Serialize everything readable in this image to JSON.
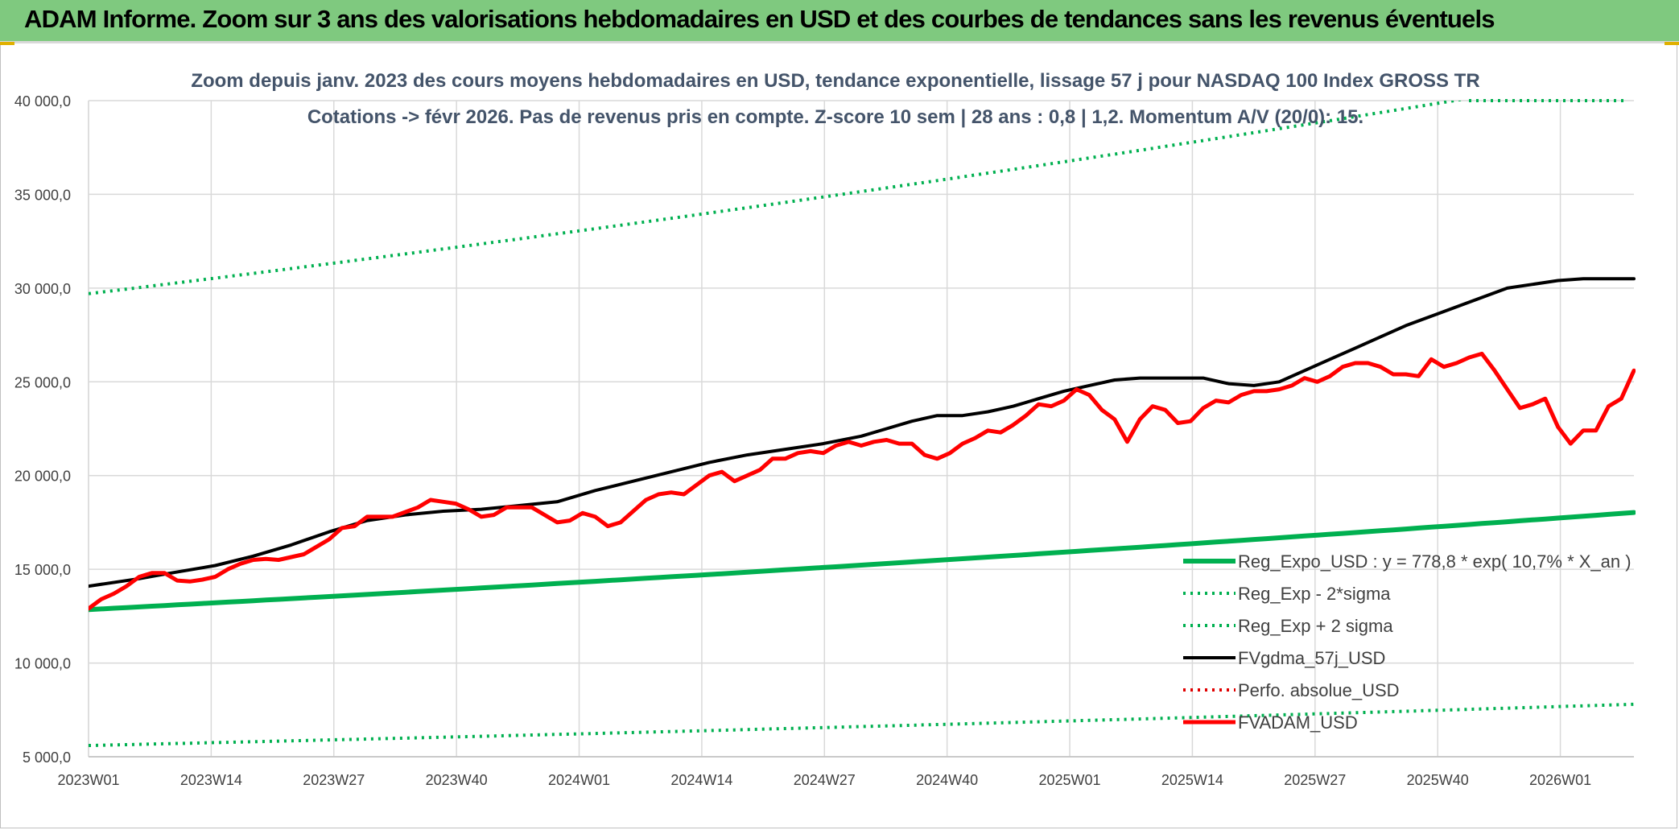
{
  "banner": {
    "title": "ADAM Informe. Zoom sur 3 ans des valorisations hebdomadaires en USD et des courbes de tendances sans les revenus éventuels",
    "color": "#7fc97f"
  },
  "chart_data": {
    "type": "line",
    "title_line1": "Zoom depuis janv. 2023 des cours moyens hebdomadaires en USD, tendance exponentielle, lissage 57 j pour NASDAQ 100 Index GROSS TR",
    "title_line2": "Cotations -> févr 2026. Pas de revenus pris en compte. Z-score 10 sem | 28 ans : 0,8 | 1,2. Momentum A/V (20/0): 15.",
    "xlabel": "",
    "ylabel": "",
    "ylim": [
      5000,
      40000
    ],
    "y_ticks": [
      "5 000,0",
      "10 000,0",
      "15 000,0",
      "20 000,0",
      "25 000,0",
      "30 000,0",
      "35 000,0",
      "40 000,0"
    ],
    "x_ticks": [
      "2023W01",
      "2023W14",
      "2023W27",
      "2023W40",
      "2024W01",
      "2024W14",
      "2024W27",
      "2024W40",
      "2025W01",
      "2025W14",
      "2025W27",
      "2025W40",
      "2026W01"
    ],
    "grid": true,
    "legend_position": "bottom-right",
    "x_weeks": 165,
    "series": [
      {
        "name": "Reg_Expo_USD : y = 778,8 * exp( 10,7% *  X_an )",
        "color": "#00b050",
        "style": "solid-thick",
        "values_anchor": [
          [
            0,
            12850
          ],
          [
            164,
            18030
          ]
        ]
      },
      {
        "name": "Reg_Exp - 2*sigma",
        "color": "#00b050",
        "style": "dotted",
        "values_anchor": [
          [
            0,
            5600
          ],
          [
            164,
            7800
          ]
        ]
      },
      {
        "name": "Reg_Exp + 2 sigma",
        "color": "#00b050",
        "style": "dotted",
        "values_anchor": [
          [
            0,
            29700
          ],
          [
            164,
            41600
          ]
        ]
      },
      {
        "name": "FVgdma_57j_USD",
        "color": "#000000",
        "style": "solid",
        "values_anchor": [
          [
            0,
            14100
          ],
          [
            8,
            14500
          ],
          [
            13,
            14800
          ],
          [
            20,
            15200
          ],
          [
            26,
            15700
          ],
          [
            32,
            16300
          ],
          [
            38,
            17000
          ],
          [
            44,
            17600
          ],
          [
            50,
            17900
          ],
          [
            56,
            18100
          ],
          [
            62,
            18200
          ],
          [
            68,
            18400
          ],
          [
            74,
            18600
          ],
          [
            80,
            19200
          ],
          [
            86,
            19700
          ],
          [
            92,
            20200
          ],
          [
            98,
            20700
          ],
          [
            104,
            21100
          ],
          [
            110,
            21400
          ],
          [
            116,
            21700
          ],
          [
            122,
            22100
          ],
          [
            126,
            22500
          ],
          [
            130,
            22900
          ],
          [
            134,
            23200
          ],
          [
            138,
            23200
          ],
          [
            142,
            23400
          ],
          [
            146,
            23700
          ],
          [
            150,
            24100
          ],
          [
            154,
            24500
          ],
          [
            158,
            24800
          ],
          [
            162,
            25100
          ],
          [
            166,
            25200
          ],
          [
            170,
            25200
          ],
          [
            176,
            25200
          ],
          [
            180,
            24900
          ],
          [
            184,
            24800
          ],
          [
            188,
            25000
          ],
          [
            192,
            25600
          ],
          [
            196,
            26200
          ],
          [
            200,
            26800
          ],
          [
            204,
            27400
          ],
          [
            208,
            28000
          ],
          [
            212,
            28500
          ],
          [
            216,
            29000
          ],
          [
            220,
            29500
          ],
          [
            224,
            30000
          ],
          [
            228,
            30200
          ],
          [
            232,
            30400
          ],
          [
            236,
            30500
          ],
          [
            240,
            30500
          ],
          [
            244,
            30500
          ]
        ]
      },
      {
        "name": "Perfo. absolue_USD",
        "color": "#e00000",
        "style": "dotted",
        "values_anchor": []
      },
      {
        "name": "FVADAM_USD",
        "color": "#ff0000",
        "style": "solid-thick",
        "values_anchor": [
          [
            0,
            12900
          ],
          [
            2,
            13400
          ],
          [
            4,
            13700
          ],
          [
            6,
            14100
          ],
          [
            8,
            14600
          ],
          [
            10,
            14800
          ],
          [
            12,
            14800
          ],
          [
            14,
            14400
          ],
          [
            16,
            14350
          ],
          [
            18,
            14450
          ],
          [
            20,
            14600
          ],
          [
            22,
            15000
          ],
          [
            24,
            15300
          ],
          [
            26,
            15500
          ],
          [
            28,
            15550
          ],
          [
            30,
            15500
          ],
          [
            32,
            15650
          ],
          [
            34,
            15800
          ],
          [
            36,
            16200
          ],
          [
            38,
            16600
          ],
          [
            40,
            17200
          ],
          [
            42,
            17300
          ],
          [
            44,
            17800
          ],
          [
            46,
            17800
          ],
          [
            48,
            17800
          ],
          [
            50,
            18050
          ],
          [
            52,
            18300
          ],
          [
            54,
            18700
          ],
          [
            56,
            18600
          ],
          [
            58,
            18500
          ],
          [
            60,
            18200
          ],
          [
            62,
            17800
          ],
          [
            64,
            17900
          ],
          [
            66,
            18300
          ],
          [
            68,
            18300
          ],
          [
            70,
            18300
          ],
          [
            72,
            17900
          ],
          [
            74,
            17500
          ],
          [
            76,
            17600
          ],
          [
            78,
            18000
          ],
          [
            80,
            17800
          ],
          [
            82,
            17300
          ],
          [
            84,
            17500
          ],
          [
            86,
            18100
          ],
          [
            88,
            18700
          ],
          [
            90,
            19000
          ],
          [
            92,
            19100
          ],
          [
            94,
            19000
          ],
          [
            96,
            19500
          ],
          [
            98,
            20000
          ],
          [
            100,
            20200
          ],
          [
            102,
            19700
          ],
          [
            104,
            20000
          ],
          [
            106,
            20300
          ],
          [
            108,
            20900
          ],
          [
            110,
            20900
          ],
          [
            112,
            21200
          ],
          [
            114,
            21300
          ],
          [
            116,
            21200
          ],
          [
            118,
            21600
          ],
          [
            120,
            21800
          ],
          [
            122,
            21600
          ],
          [
            124,
            21800
          ],
          [
            126,
            21900
          ],
          [
            128,
            21700
          ],
          [
            130,
            21700
          ],
          [
            132,
            21100
          ],
          [
            134,
            20900
          ],
          [
            136,
            21200
          ],
          [
            138,
            21700
          ],
          [
            140,
            22000
          ],
          [
            142,
            22400
          ],
          [
            144,
            22300
          ],
          [
            146,
            22700
          ],
          [
            148,
            23200
          ],
          [
            150,
            23800
          ],
          [
            152,
            23700
          ],
          [
            154,
            24000
          ],
          [
            156,
            24600
          ],
          [
            158,
            24300
          ],
          [
            160,
            23500
          ],
          [
            162,
            23000
          ],
          [
            164,
            21800
          ],
          [
            166,
            23000
          ],
          [
            168,
            23700
          ],
          [
            170,
            23500
          ],
          [
            172,
            22800
          ],
          [
            174,
            22900
          ],
          [
            176,
            23600
          ],
          [
            178,
            24000
          ],
          [
            180,
            23900
          ],
          [
            182,
            24300
          ],
          [
            184,
            24500
          ],
          [
            186,
            24500
          ],
          [
            188,
            24600
          ],
          [
            190,
            24800
          ],
          [
            192,
            25200
          ],
          [
            194,
            25000
          ],
          [
            196,
            25300
          ],
          [
            198,
            25800
          ],
          [
            200,
            26000
          ],
          [
            202,
            26000
          ],
          [
            204,
            25800
          ],
          [
            206,
            25400
          ],
          [
            208,
            25400
          ],
          [
            210,
            25300
          ],
          [
            212,
            26200
          ],
          [
            214,
            25800
          ],
          [
            216,
            26000
          ],
          [
            218,
            26300
          ],
          [
            220,
            26500
          ],
          [
            222,
            25600
          ],
          [
            224,
            24600
          ],
          [
            226,
            23600
          ],
          [
            228,
            23800
          ],
          [
            230,
            24100
          ],
          [
            232,
            22600
          ],
          [
            234,
            21700
          ],
          [
            236,
            22400
          ],
          [
            238,
            22400
          ],
          [
            240,
            23700
          ],
          [
            242,
            24100
          ],
          [
            244,
            25600
          ]
        ]
      }
    ]
  }
}
